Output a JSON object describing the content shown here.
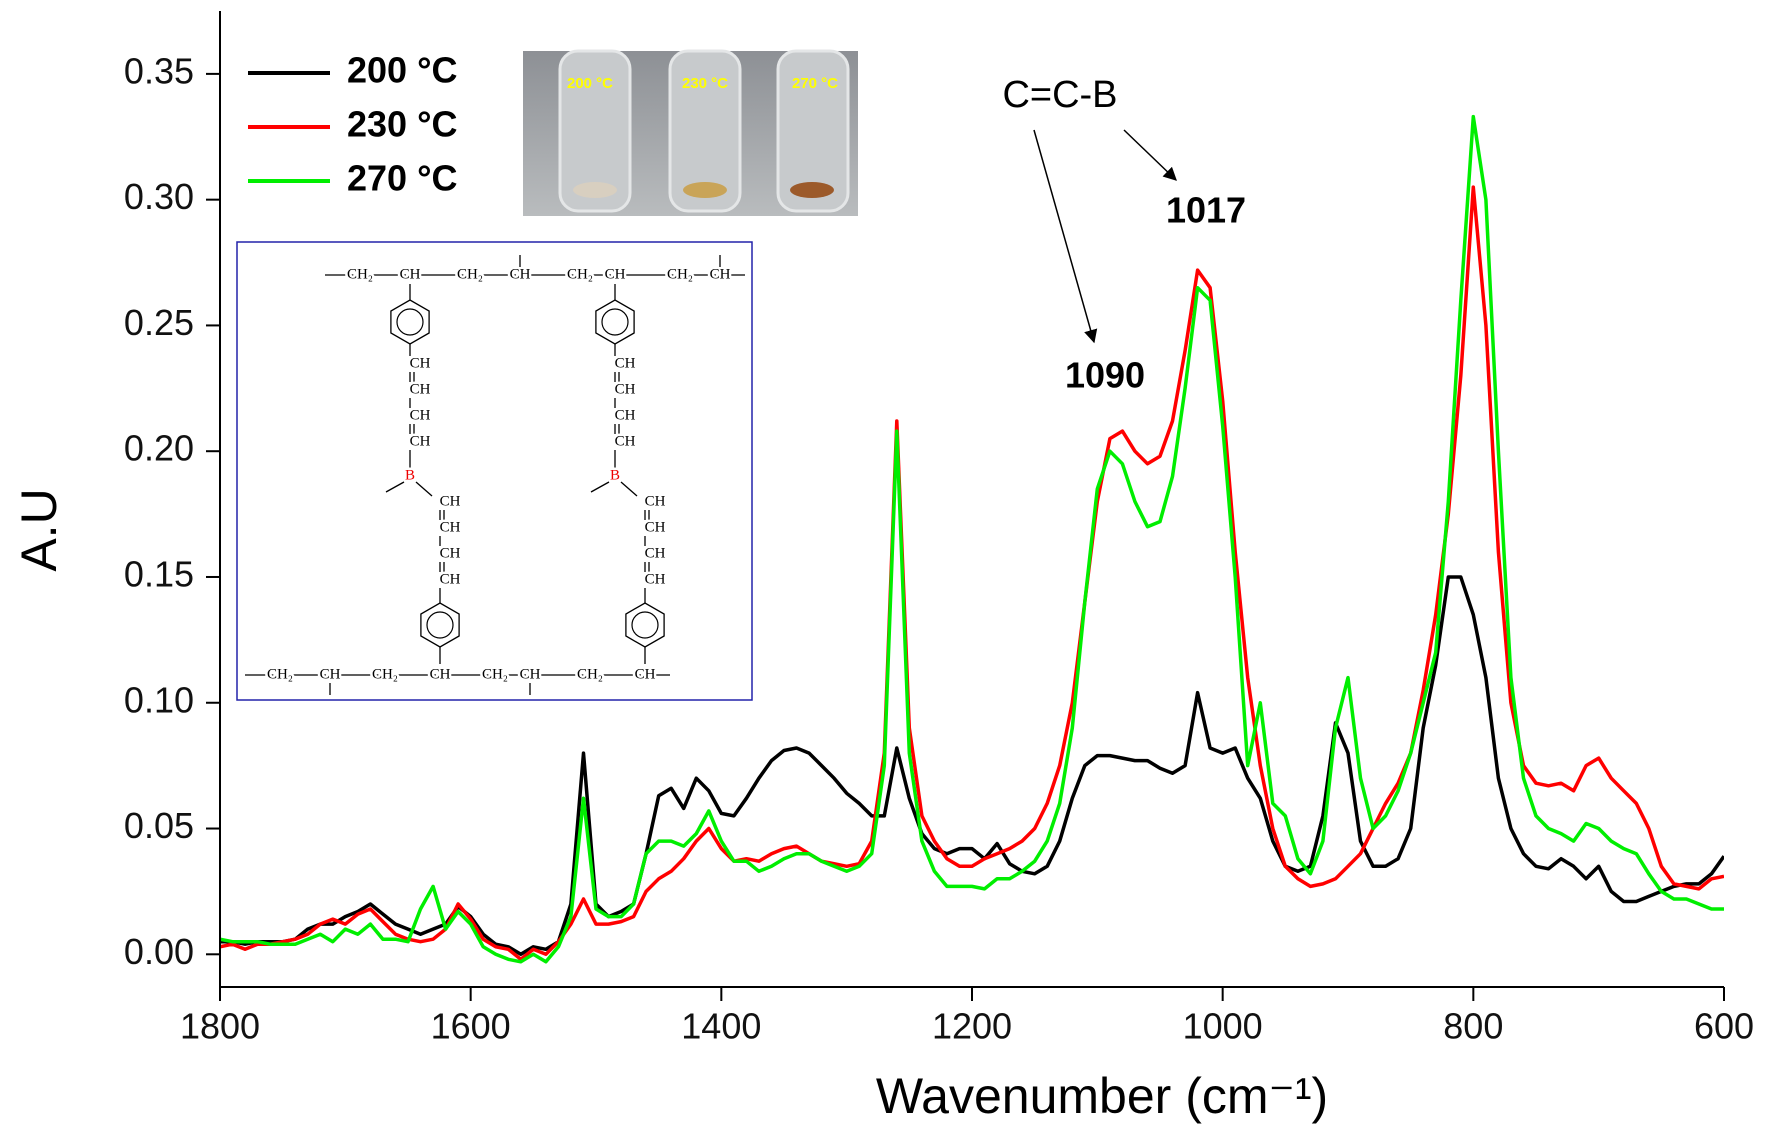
{
  "chart_data": {
    "type": "line",
    "x_label": "Wavenumber (cm⁻¹)",
    "y_label": "A.U",
    "xlim": [
      1800,
      600
    ],
    "ylim": [
      -0.013,
      0.375
    ],
    "xticks": [
      1800,
      1600,
      1400,
      1200,
      1000,
      800,
      600
    ],
    "yticks": [
      {
        "value": 0,
        "label": "0.00"
      },
      0.05,
      {
        "value": 0.1,
        "label": "0.10"
      },
      0.15,
      {
        "value": 0.2,
        "label": "0.20"
      },
      0.25,
      {
        "value": 0.3,
        "label": "0.30"
      },
      0.35
    ],
    "legend": "upper left",
    "x": [
      1800,
      1790,
      1780,
      1770,
      1760,
      1750,
      1740,
      1730,
      1720,
      1710,
      1700,
      1690,
      1680,
      1670,
      1660,
      1650,
      1640,
      1630,
      1620,
      1610,
      1600,
      1590,
      1580,
      1570,
      1560,
      1550,
      1540,
      1530,
      1520,
      1510,
      1500,
      1490,
      1480,
      1470,
      1460,
      1450,
      1440,
      1430,
      1420,
      1410,
      1400,
      1390,
      1380,
      1370,
      1360,
      1350,
      1340,
      1330,
      1320,
      1310,
      1300,
      1290,
      1280,
      1270,
      1260,
      1250,
      1240,
      1230,
      1220,
      1210,
      1200,
      1190,
      1180,
      1170,
      1160,
      1150,
      1140,
      1130,
      1120,
      1110,
      1100,
      1090,
      1080,
      1070,
      1060,
      1050,
      1040,
      1030,
      1020,
      1010,
      1000,
      990,
      980,
      970,
      960,
      950,
      940,
      930,
      920,
      910,
      900,
      890,
      880,
      870,
      860,
      850,
      840,
      830,
      820,
      810,
      800,
      790,
      780,
      770,
      760,
      750,
      740,
      730,
      720,
      710,
      700,
      690,
      680,
      670,
      660,
      650,
      640,
      630,
      620,
      610,
      600
    ],
    "series": [
      {
        "name": "200 °C",
        "color": "#000000",
        "values": [
          0.005,
          0.005,
          0.004,
          0.005,
          0.005,
          0.005,
          0.006,
          0.01,
          0.012,
          0.012,
          0.015,
          0.017,
          0.02,
          0.016,
          0.012,
          0.01,
          0.008,
          0.01,
          0.012,
          0.019,
          0.015,
          0.008,
          0.004,
          0.003,
          0.0,
          0.003,
          0.002,
          0.005,
          0.02,
          0.08,
          0.02,
          0.015,
          0.017,
          0.02,
          0.04,
          0.063,
          0.066,
          0.058,
          0.07,
          0.065,
          0.056,
          0.055,
          0.062,
          0.07,
          0.077,
          0.081,
          0.082,
          0.08,
          0.075,
          0.07,
          0.064,
          0.06,
          0.055,
          0.055,
          0.082,
          0.062,
          0.048,
          0.042,
          0.04,
          0.042,
          0.042,
          0.038,
          0.044,
          0.036,
          0.033,
          0.032,
          0.035,
          0.045,
          0.062,
          0.075,
          0.079,
          0.079,
          0.078,
          0.077,
          0.077,
          0.074,
          0.072,
          0.075,
          0.104,
          0.082,
          0.08,
          0.082,
          0.07,
          0.062,
          0.045,
          0.035,
          0.033,
          0.035,
          0.055,
          0.092,
          0.08,
          0.045,
          0.035,
          0.035,
          0.038,
          0.05,
          0.09,
          0.115,
          0.15,
          0.15,
          0.135,
          0.11,
          0.07,
          0.05,
          0.04,
          0.035,
          0.034,
          0.038,
          0.035,
          0.03,
          0.035,
          0.025,
          0.021,
          0.021,
          0.023,
          0.025,
          0.027,
          0.028,
          0.028,
          0.032,
          0.039
        ]
      },
      {
        "name": "230 °C",
        "color": "#ff0000",
        "values": [
          0.003,
          0.004,
          0.002,
          0.004,
          0.004,
          0.005,
          0.006,
          0.008,
          0.012,
          0.014,
          0.012,
          0.016,
          0.018,
          0.013,
          0.008,
          0.006,
          0.005,
          0.006,
          0.01,
          0.02,
          0.014,
          0.006,
          0.003,
          0.002,
          -0.002,
          0.002,
          0.0,
          0.005,
          0.012,
          0.022,
          0.012,
          0.012,
          0.013,
          0.015,
          0.025,
          0.03,
          0.033,
          0.038,
          0.045,
          0.05,
          0.042,
          0.037,
          0.038,
          0.037,
          0.04,
          0.042,
          0.043,
          0.04,
          0.037,
          0.036,
          0.035,
          0.036,
          0.045,
          0.08,
          0.212,
          0.09,
          0.055,
          0.045,
          0.038,
          0.035,
          0.035,
          0.038,
          0.04,
          0.042,
          0.045,
          0.05,
          0.06,
          0.075,
          0.1,
          0.14,
          0.18,
          0.205,
          0.208,
          0.2,
          0.195,
          0.198,
          0.212,
          0.24,
          0.272,
          0.265,
          0.22,
          0.16,
          0.11,
          0.075,
          0.05,
          0.035,
          0.03,
          0.027,
          0.028,
          0.03,
          0.035,
          0.04,
          0.05,
          0.06,
          0.068,
          0.08,
          0.105,
          0.135,
          0.175,
          0.23,
          0.305,
          0.25,
          0.16,
          0.1,
          0.075,
          0.068,
          0.067,
          0.068,
          0.065,
          0.075,
          0.078,
          0.07,
          0.065,
          0.06,
          0.05,
          0.035,
          0.028,
          0.027,
          0.026,
          0.03,
          0.031
        ]
      },
      {
        "name": "270 °C",
        "color": "#00ee00",
        "values": [
          0.006,
          0.005,
          0.005,
          0.005,
          0.004,
          0.004,
          0.004,
          0.006,
          0.008,
          0.005,
          0.01,
          0.008,
          0.012,
          0.006,
          0.006,
          0.005,
          0.018,
          0.027,
          0.01,
          0.017,
          0.012,
          0.003,
          0.0,
          -0.002,
          -0.003,
          0.0,
          -0.003,
          0.003,
          0.015,
          0.062,
          0.018,
          0.015,
          0.015,
          0.02,
          0.04,
          0.045,
          0.045,
          0.043,
          0.048,
          0.057,
          0.045,
          0.037,
          0.037,
          0.033,
          0.035,
          0.038,
          0.04,
          0.04,
          0.037,
          0.035,
          0.033,
          0.035,
          0.04,
          0.075,
          0.208,
          0.08,
          0.045,
          0.033,
          0.027,
          0.027,
          0.027,
          0.026,
          0.03,
          0.03,
          0.033,
          0.037,
          0.045,
          0.06,
          0.09,
          0.14,
          0.185,
          0.2,
          0.195,
          0.18,
          0.17,
          0.172,
          0.19,
          0.225,
          0.265,
          0.26,
          0.21,
          0.15,
          0.075,
          0.1,
          0.06,
          0.055,
          0.038,
          0.032,
          0.045,
          0.09,
          0.11,
          0.07,
          0.05,
          0.055,
          0.065,
          0.08,
          0.1,
          0.12,
          0.18,
          0.26,
          0.333,
          0.3,
          0.2,
          0.11,
          0.07,
          0.055,
          0.05,
          0.048,
          0.045,
          0.052,
          0.05,
          0.045,
          0.042,
          0.04,
          0.032,
          0.025,
          0.022,
          0.022,
          0.02,
          0.018,
          0.018
        ]
      }
    ],
    "annotations": {
      "bond": "C=C-B",
      "peak_1017": "1017",
      "peak_1090": "1090"
    },
    "inset_photo_labels": [
      "200 °C",
      "230 °C",
      "270 °C"
    ],
    "inset_structure": {
      "ch2": "CH₂",
      "ch": "CH",
      "boron": "B"
    }
  }
}
